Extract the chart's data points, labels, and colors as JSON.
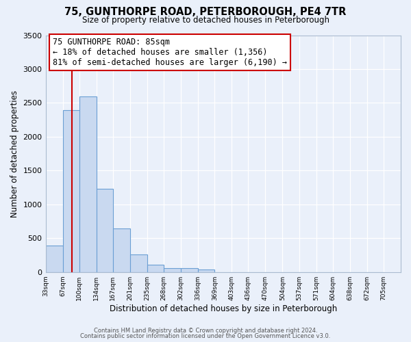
{
  "title": "75, GUNTHORPE ROAD, PETERBOROUGH, PE4 7TR",
  "subtitle": "Size of property relative to detached houses in Peterborough",
  "xlabel": "Distribution of detached houses by size in Peterborough",
  "ylabel": "Number of detached properties",
  "bar_values": [
    390,
    2390,
    2600,
    1230,
    640,
    255,
    110,
    60,
    55,
    35,
    0,
    0,
    0,
    0,
    0,
    0,
    0,
    0,
    0,
    0
  ],
  "bin_label_vals": [
    33,
    67,
    100,
    134,
    167,
    201,
    235,
    268,
    302,
    336,
    369,
    403,
    436,
    470,
    504,
    537,
    571,
    604,
    638,
    672,
    705
  ],
  "bar_color": "#c9d9f0",
  "bar_edge_color": "#6b9fd4",
  "vline_x": 85,
  "vline_color": "#cc0000",
  "annotation_line1": "75 GUNTHORPE ROAD: 85sqm",
  "annotation_line2": "← 18% of detached houses are smaller (1,356)",
  "annotation_line3": "81% of semi-detached houses are larger (6,190) →",
  "annotation_box_color": "#cc0000",
  "ylim": [
    0,
    3500
  ],
  "yticks": [
    0,
    500,
    1000,
    1500,
    2000,
    2500,
    3000,
    3500
  ],
  "footer1": "Contains HM Land Registry data © Crown copyright and database right 2024.",
  "footer2": "Contains public sector information licensed under the Open Government Licence v3.0.",
  "bg_color": "#eaf0fa",
  "grid_color": "#ffffff"
}
